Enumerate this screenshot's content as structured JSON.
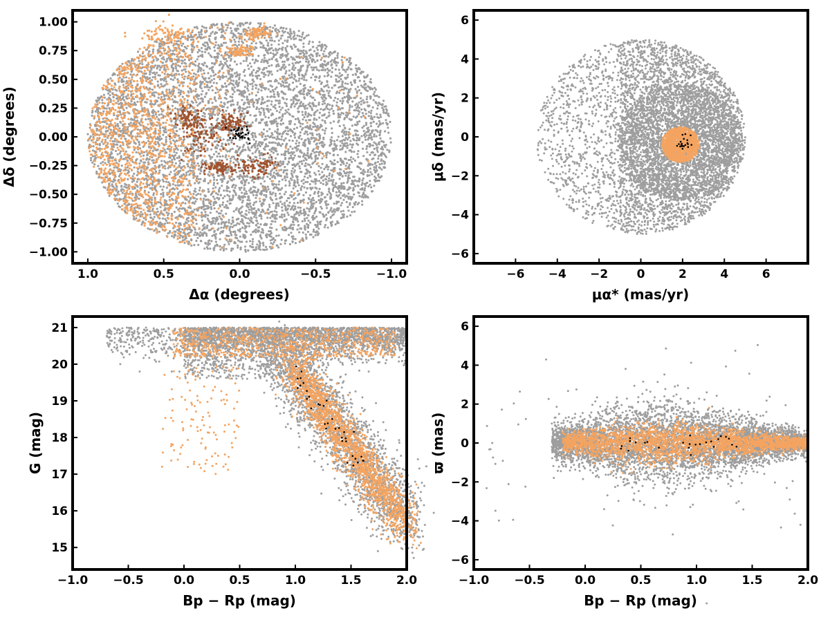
{
  "colors": {
    "field": "#9e9e9e",
    "member": "#f4a460",
    "core_member": "#a0522d",
    "cluster": "#000000"
  },
  "chart_data": [
    {
      "id": "sky",
      "type": "scatter",
      "xlabel": "Δα (degrees)",
      "ylabel": "Δδ (degrees)",
      "xlim": [
        1.1,
        -1.1
      ],
      "ylim": [
        -1.1,
        1.1
      ],
      "x_inverted": true,
      "xticks": [
        1.0,
        0.5,
        0.0,
        -0.5,
        -1.0
      ],
      "xtick_labels": [
        "1.0",
        "0.5",
        "0.0",
        "−0.5",
        "−1.0"
      ],
      "yticks": [
        1.0,
        0.75,
        0.5,
        0.25,
        0.0,
        -0.25,
        -0.5,
        -0.75,
        -1.0
      ],
      "ytick_labels": [
        "1.00",
        "0.75",
        "0.50",
        "0.25",
        "0.00",
        "−0.25",
        "−0.50",
        "−0.75",
        "−1.00"
      ],
      "grid": false,
      "series": [
        {
          "role": "field",
          "color": "#9e9e9e",
          "distribution": "uniform disk, radius 1.0 deg, center (0,0)",
          "approx_points": 6000
        },
        {
          "role": "member",
          "color": "#f4a460",
          "distribution": "concentrated at Δα > 0.3 (eastern half), plus patches near (0.5,0.9) and (-0.1,0.9)",
          "approx_points": 3500
        },
        {
          "role": "core_member",
          "color": "#a0522d",
          "distribution": "clumps near (0.25,0.0), (0.05,0.12), (-0.1,-0.25), (0.15,-0.25)",
          "approx_points": 350
        },
        {
          "role": "cluster",
          "color": "#000000",
          "center": [
            0.02,
            0.02
          ],
          "approx_points": 35
        }
      ]
    },
    {
      "id": "proper-motion",
      "type": "scatter",
      "xlabel": "μα* (mas/yr)",
      "ylabel": "μδ (mas/yr)",
      "xlim": [
        -8.0,
        8.0
      ],
      "ylim": [
        -6.5,
        6.5
      ],
      "xticks": [
        -6,
        -4,
        -2,
        0,
        2,
        4,
        6
      ],
      "xtick_labels": [
        "−6",
        "−4",
        "−2",
        "0",
        "2",
        "4",
        "6"
      ],
      "yticks": [
        6,
        4,
        2,
        0,
        -2,
        -4,
        -6
      ],
      "ytick_labels": [
        "6",
        "4",
        "2",
        "0",
        "−2",
        "−4",
        "−6"
      ],
      "grid": false,
      "series": [
        {
          "role": "field",
          "color": "#9e9e9e",
          "distribution": "disk radius 5 mas/yr centred (0,0), dense core near (1.8,-0.3), sparse beyond x < 0",
          "approx_points": 5000
        },
        {
          "role": "member",
          "color": "#f4a460",
          "center": [
            1.9,
            -0.4
          ],
          "radius": 0.9,
          "approx_points": 1200
        },
        {
          "role": "cluster",
          "color": "#000000",
          "center": [
            2.0,
            -0.3
          ],
          "approx_points": 20
        }
      ]
    },
    {
      "id": "cmd",
      "type": "scatter",
      "xlabel": "Bp − Rp (mag)",
      "ylabel": "G (mag)",
      "xlim": [
        -1.0,
        2.0
      ],
      "ylim": [
        14.4,
        21.3
      ],
      "y_inverted": false,
      "xticks": [
        -1.0,
        -0.5,
        0.0,
        0.5,
        1.0,
        1.5,
        2.0
      ],
      "xtick_labels": [
        "−1.0",
        "−0.5",
        "0.0",
        "0.5",
        "1.0",
        "1.5",
        "2.0"
      ],
      "yticks": [
        21,
        20,
        19,
        18,
        17,
        16,
        15
      ],
      "ytick_labels": [
        "21",
        "20",
        "19",
        "18",
        "17",
        "16",
        "15"
      ],
      "grid": false,
      "series": [
        {
          "role": "field",
          "color": "#9e9e9e",
          "distribution": "faint band G 20-21 over colour 0-2, sequence from (1.0,19.5) to (2.0,16)",
          "approx_points": 5000
        },
        {
          "role": "member",
          "color": "#f4a460",
          "distribution": "main sequence G=19.5 at 1.1 to G=16 at 1.9, plus blue scatter at colour 0-0.3",
          "approx_points": 2500
        },
        {
          "role": "cluster",
          "color": "#000000",
          "distribution": "along main sequence 1.0-1.6",
          "approx_points": 35
        }
      ]
    },
    {
      "id": "parallax",
      "type": "scatter",
      "xlabel": "Bp − Rp (mag)",
      "ylabel": "ϖ (mas)",
      "xlim": [
        -1.0,
        2.0
      ],
      "ylim": [
        -6.5,
        6.5
      ],
      "xticks": [
        -1.0,
        -0.5,
        0.0,
        0.5,
        1.0,
        1.5,
        2.0
      ],
      "xtick_labels": [
        "−1.0",
        "−0.5",
        "0.0",
        "0.5",
        "1.0",
        "1.5",
        "2.0"
      ],
      "yticks": [
        6,
        4,
        2,
        0,
        -2,
        -4,
        -6
      ],
      "ytick_labels": [
        "6",
        "4",
        "2",
        "0",
        "−2",
        "−4",
        "−6"
      ],
      "grid": false,
      "series": [
        {
          "role": "field",
          "color": "#9e9e9e",
          "distribution": "spindle centred at ϖ=0, widest (±2.5) near colour 0.7, narrowing towards colour 2.0",
          "approx_points": 5000
        },
        {
          "role": "member",
          "color": "#f4a460",
          "distribution": "narrower spindle centred at ϖ=0, width ±1.2",
          "approx_points": 2500
        },
        {
          "role": "cluster",
          "color": "#000000",
          "distribution": "ϖ ≈ 0 across colour 0.3-1.4",
          "approx_points": 25
        }
      ]
    }
  ]
}
